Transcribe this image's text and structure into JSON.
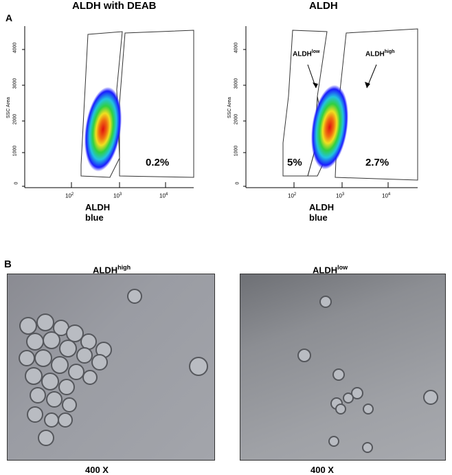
{
  "panel_a": {
    "label": "A",
    "plots": [
      {
        "title": "ALDH with DEAB",
        "ylabel": "SSC Area",
        "xlabel": "ALDH blue",
        "yticks": [
          "4000",
          "3000",
          "2000",
          "1000",
          "0"
        ],
        "xticks": [
          "10",
          "10",
          "10"
        ],
        "xtick_exps": [
          "2",
          "3",
          "4"
        ],
        "gate_pcts": [
          "0.2%"
        ],
        "gate_labels": []
      },
      {
        "title": "ALDH",
        "ylabel": "SSC Area",
        "xlabel": "ALDH blue",
        "yticks": [
          "4000",
          "3000",
          "2000",
          "1000",
          "0"
        ],
        "xticks": [
          "10",
          "10",
          "10"
        ],
        "xtick_exps": [
          "2",
          "3",
          "4"
        ],
        "gate_pcts": [
          "5%",
          "2.7%"
        ],
        "gate_labels": [
          {
            "base": "ALDH",
            "sup": "low"
          },
          {
            "base": "ALDH",
            "sup": "high"
          }
        ]
      }
    ],
    "colors": {
      "low": "#1a1aff",
      "mid": "#22c4e0",
      "high": "#f0e020",
      "peak": "#e01010"
    }
  },
  "panel_b": {
    "label": "B",
    "images": [
      {
        "title_base": "ALDH",
        "title_sup": "high",
        "magnification": "400 X"
      },
      {
        "title_base": "ALDH",
        "title_sup": "low",
        "magnification": "400 X"
      }
    ]
  }
}
